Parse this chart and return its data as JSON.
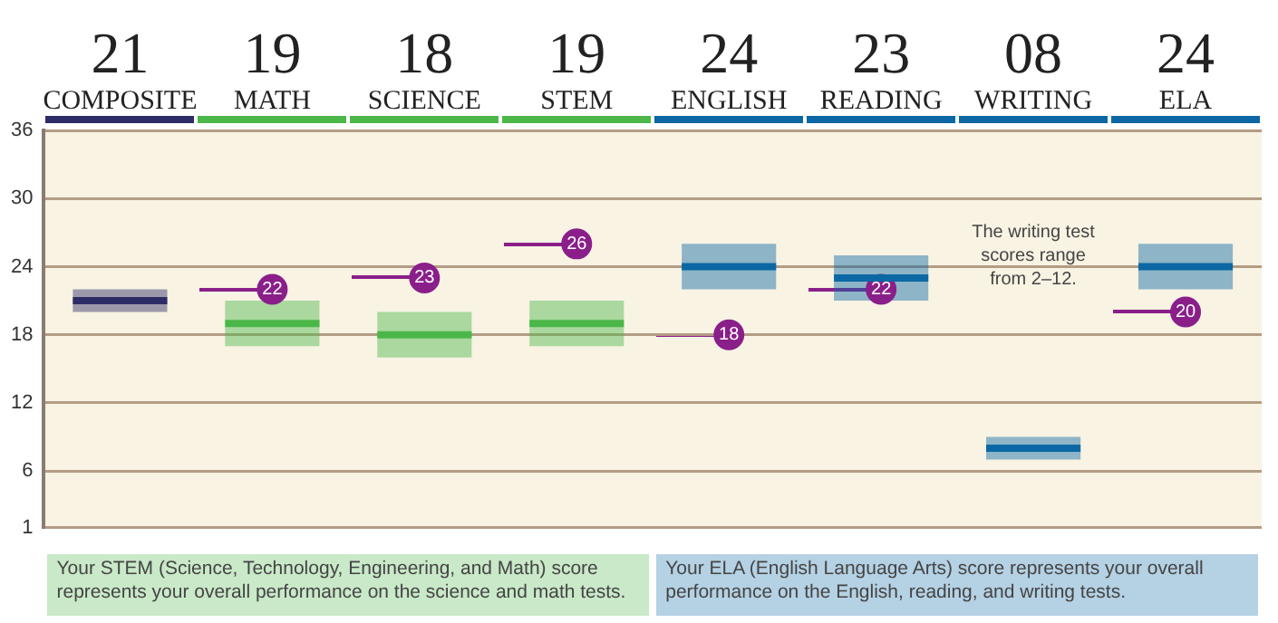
{
  "chart_data": {
    "type": "box",
    "categories": [
      "21\nCOMPOSITE",
      "19\nMATH",
      "18\nSCIENCE",
      "19\nSTEM",
      "24\nENGLISH",
      "23\nREADING",
      "08\nWRITING",
      "24\nELA"
    ],
    "series": [
      {
        "colors": [
          "#2e2c66",
          "#4bb749",
          "#4bb749",
          "#4bb749",
          "#0b68a4",
          "#0b68a4",
          "#0b68a4",
          "#0b68a4"
        ],
        "boxes": [
          {
            "low": 20,
            "q1": 20,
            "median": 21,
            "q3": 22,
            "high": 22
          },
          {
            "low": 17,
            "q1": 17,
            "median": 19,
            "q3": 21,
            "high": 21
          },
          {
            "low": 16,
            "q1": 16,
            "median": 18,
            "q3": 20,
            "high": 20
          },
          {
            "low": 17,
            "q1": 17,
            "median": 19,
            "q3": 21,
            "high": 21
          },
          {
            "low": 22,
            "q1": 22,
            "median": 24,
            "q3": 26,
            "high": 26
          },
          {
            "low": 21,
            "q1": 21,
            "median": 23,
            "q3": 25,
            "high": 25
          },
          {
            "low": 7,
            "q1": 7,
            "median": 8,
            "q3": 9,
            "high": 9
          },
          {
            "low": 22,
            "q1": 22,
            "median": 24,
            "q3": 26,
            "high": 26
          }
        ]
      },
      {
        "type": "scatter",
        "x": [
          "21\nCOMPOSITE",
          "19\nMATH",
          "18\nSCIENCE",
          "19\nSTEM",
          "24\nENGLISH",
          "23\nREADING",
          "08\nWRITING",
          "24\nELA"
        ],
        "values": [
          null,
          22,
          23,
          26,
          18,
          22,
          null,
          20
        ],
        "color": "#8a1f8a",
        "marker": "circle",
        "data_labels": true
      }
    ],
    "ylim": [
      1,
      36
    ],
    "yticks": [
      1,
      6,
      12,
      18,
      24,
      30,
      36
    ],
    "grid": "y",
    "legend": false,
    "annotations": [
      "The writing test scores range from 2–12.",
      "Your STEM (Science, Technology, Engineering, and Math) score represents your overall performance on the science and math tests.",
      "Your ELA (English Language Arts) score represents your overall performance on the English, reading, and writing tests."
    ]
  }
}
